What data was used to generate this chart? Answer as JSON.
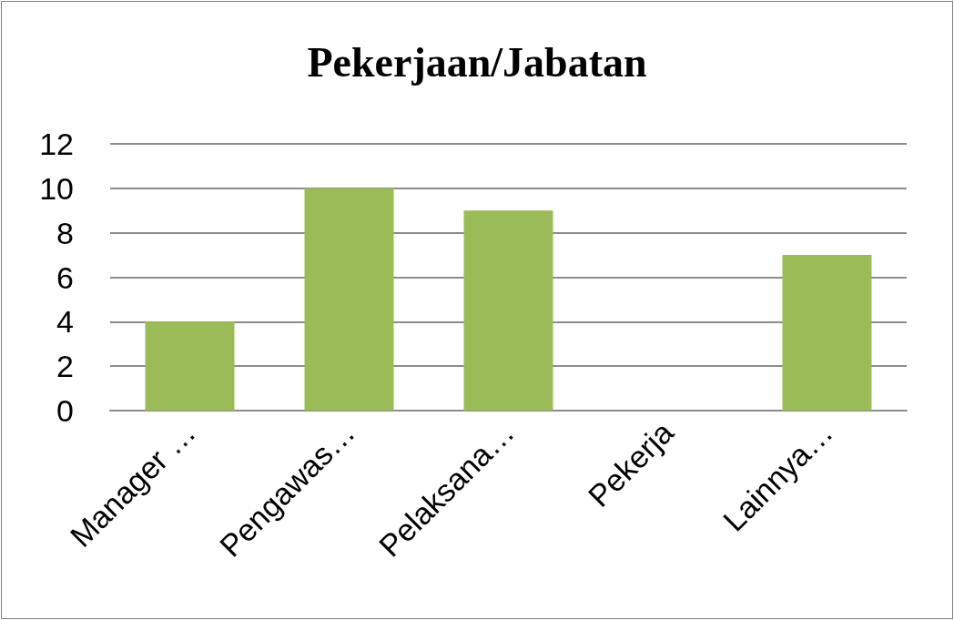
{
  "chart_data": {
    "type": "bar",
    "title": "Pekerjaan/Jabatan",
    "categories": [
      "Manager …",
      "Pengawas…",
      "Pelaksana…",
      "Pekerja",
      "Lainnya…"
    ],
    "values": [
      4,
      10,
      9,
      0,
      7
    ],
    "color": "#9bbb59",
    "ylim": [
      0,
      12
    ],
    "yticks": [
      0,
      2,
      4,
      6,
      8,
      10,
      12
    ],
    "grid": "y"
  }
}
